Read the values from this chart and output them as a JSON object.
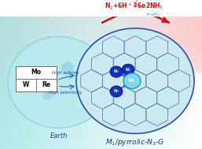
{
  "bg_color_top_left": "#a8e8e8",
  "bg_color_bottom": "#c0f0f0",
  "earth_color": "#b8e8f0",
  "earth_outline": "#88cce0",
  "graphene_bg": "#c8e8f0",
  "graphene_border": "#3366aa",
  "hex_color": "#5588aa",
  "metal_color": "#88d8e8",
  "metal_outline": "#2288aa",
  "N_color": "#1133bb",
  "N_outline": "#0022aa",
  "bond_color": "#2244aa",
  "title_text": "M$_1$/pyrrolic-N$_3$-G",
  "eq_left": "N$_2$+6H$^+$+6e$^-$",
  "eq_right": "2NH$_3$",
  "label_activity": "High activity",
  "label_selectivity": "High selectivity",
  "label_earth": "Earth",
  "arrow_color": "#cc1111",
  "cyan_color": "#22aacc",
  "lightning_color": "#dd2222",
  "box_color": "white",
  "box_edge": "#555555"
}
